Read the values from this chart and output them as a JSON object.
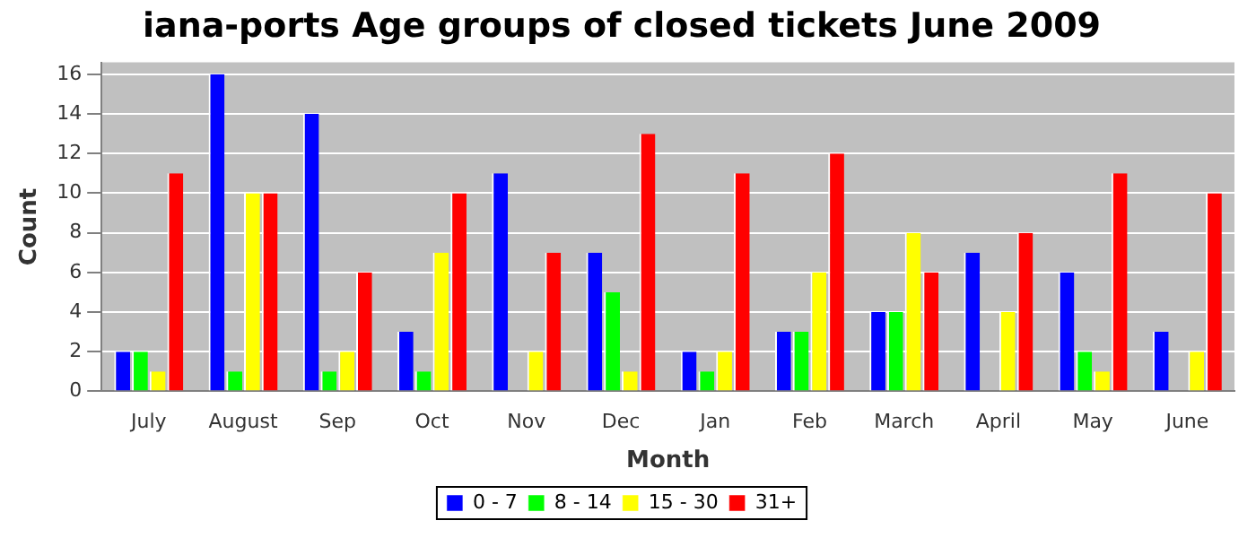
{
  "chart_data": {
    "type": "bar",
    "title": "iana-ports Age groups of closed tickets June 2009",
    "xlabel": "Month",
    "ylabel": "Count",
    "categories": [
      "July",
      "August",
      "Sep",
      "Oct",
      "Nov",
      "Dec",
      "Jan",
      "Feb",
      "March",
      "April",
      "May",
      "June"
    ],
    "series": [
      {
        "name": "0 - 7",
        "color": "#0000ff",
        "values": [
          2,
          16,
          14,
          3,
          11,
          7,
          2,
          3,
          4,
          7,
          6,
          3
        ]
      },
      {
        "name": "8 - 14",
        "color": "#00ff00",
        "values": [
          2,
          1,
          1,
          1,
          0,
          5,
          1,
          3,
          4,
          0,
          2,
          0
        ]
      },
      {
        "name": "15 - 30",
        "color": "#ffff00",
        "values": [
          1,
          10,
          2,
          7,
          2,
          1,
          2,
          6,
          8,
          4,
          1,
          2
        ]
      },
      {
        "name": "31+",
        "color": "#ff0000",
        "values": [
          11,
          10,
          6,
          10,
          7,
          13,
          11,
          12,
          6,
          8,
          11,
          10
        ]
      }
    ],
    "ylim": [
      0,
      16.6
    ],
    "yticks": [
      0,
      2,
      4,
      6,
      8,
      10,
      12,
      14,
      16
    ],
    "grid": "y",
    "legend": "bottom"
  }
}
